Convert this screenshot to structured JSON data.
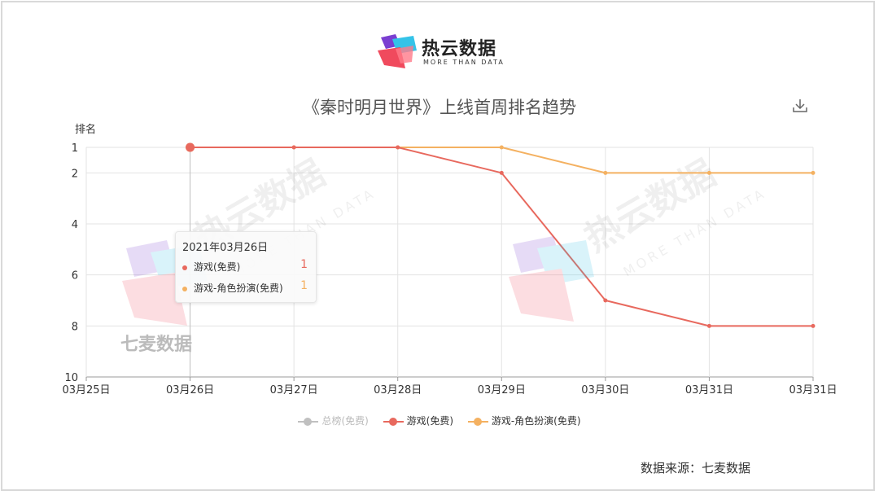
{
  "logo": {
    "cn": "热云数据",
    "en": "MORE THAN DATA"
  },
  "watermark": {
    "text": "七麦数据"
  },
  "source": "数据来源：七麦数据",
  "tooltip": {
    "date": "2021年03月26日",
    "rows": [
      {
        "name": "游戏(免费)",
        "value": "1",
        "color": "#e8695e"
      },
      {
        "name": "游戏-角色扮演(免费)",
        "value": "1",
        "color": "#f4b161"
      }
    ]
  },
  "chart_data": {
    "type": "line",
    "title": "《秦时明月世界》上线首周排名趋势",
    "xlabel": "",
    "ylabel": "排名",
    "x": [
      "03月25日",
      "03月26日",
      "03月27日",
      "03月28日",
      "03月29日",
      "03月30日",
      "03月31日",
      "03月31日"
    ],
    "y_ticks": [
      1,
      2,
      4,
      6,
      8,
      10
    ],
    "ylim": [
      1,
      10
    ],
    "y_inverted": true,
    "grid": true,
    "legend_position": "bottom",
    "series": [
      {
        "name": "总榜(免费)",
        "color": "#c0c0c0",
        "values": [
          null,
          null,
          null,
          null,
          null,
          null,
          null,
          null
        ],
        "disabled": true
      },
      {
        "name": "游戏(免费)",
        "color": "#e8695e",
        "values": [
          null,
          1,
          1,
          1,
          2,
          7,
          8,
          8
        ]
      },
      {
        "name": "游戏-角色扮演(免费)",
        "color": "#f4b161",
        "values": [
          null,
          1,
          1,
          1,
          1,
          2,
          2,
          2
        ]
      }
    ]
  }
}
